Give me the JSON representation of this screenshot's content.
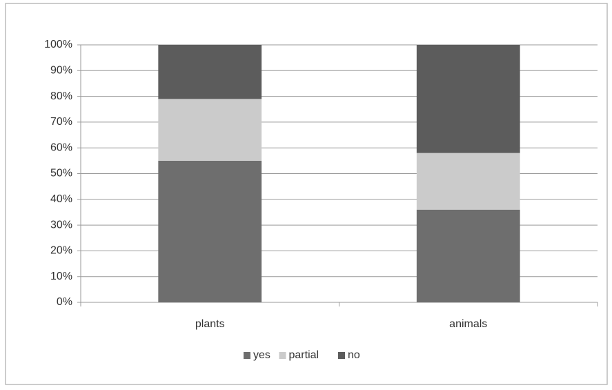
{
  "chart_data": {
    "type": "stacked_bar",
    "categories": [
      "plants",
      "animals"
    ],
    "series": [
      {
        "name": "yes",
        "color": "#6e6e6e",
        "values": [
          55,
          36
        ]
      },
      {
        "name": "partial",
        "color": "#cbcbcb",
        "values": [
          24,
          22
        ]
      },
      {
        "name": "no",
        "color": "#5c5c5c",
        "values": [
          21,
          42
        ]
      }
    ],
    "ylim": [
      0,
      100
    ],
    "yticks": [
      {
        "value": 0,
        "label": "0%"
      },
      {
        "value": 10,
        "label": "10%"
      },
      {
        "value": 20,
        "label": "20%"
      },
      {
        "value": 30,
        "label": "30%"
      },
      {
        "value": 40,
        "label": "40%"
      },
      {
        "value": 50,
        "label": "50%"
      },
      {
        "value": 60,
        "label": "60%"
      },
      {
        "value": 70,
        "label": "70%"
      },
      {
        "value": 80,
        "label": "80%"
      },
      {
        "value": 90,
        "label": "90%"
      },
      {
        "value": 100,
        "label": "100%"
      }
    ],
    "grid": true,
    "legend": "bottom"
  }
}
